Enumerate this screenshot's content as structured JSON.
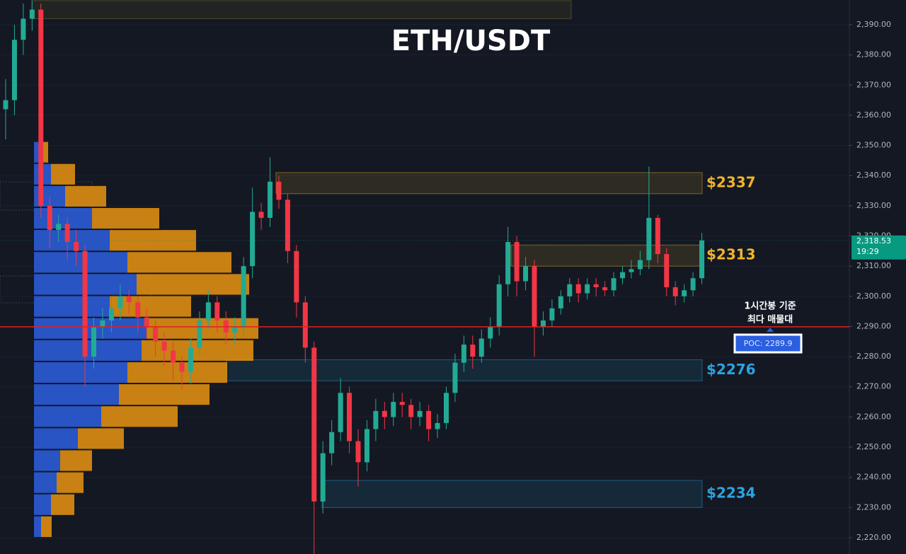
{
  "chart_data": {
    "type": "candlestick",
    "title": "ETH/USDT",
    "ylim": [
      2214.6,
      2398.2
    ],
    "yticks": [
      {
        "value": 2220,
        "label": "2,220.00"
      },
      {
        "value": 2230,
        "label": "2,230.00"
      },
      {
        "value": 2240,
        "label": "2,240.00"
      },
      {
        "value": 2250,
        "label": "2,250.00"
      },
      {
        "value": 2260,
        "label": "2,260.00"
      },
      {
        "value": 2270,
        "label": "2,270.00"
      },
      {
        "value": 2280,
        "label": "2,280.00"
      },
      {
        "value": 2290,
        "label": "2,290.00"
      },
      {
        "value": 2300,
        "label": "2,300.00"
      },
      {
        "value": 2310,
        "label": "2,310.00"
      },
      {
        "value": 2320,
        "label": "2,320.00"
      },
      {
        "value": 2330,
        "label": "2,330.00"
      },
      {
        "value": 2340,
        "label": "2,340.00"
      },
      {
        "value": 2350,
        "label": "2,350.00"
      },
      {
        "value": 2360,
        "label": "2,360.00"
      },
      {
        "value": 2370,
        "label": "2,370.00"
      },
      {
        "value": 2380,
        "label": "2,380.00"
      },
      {
        "value": 2390,
        "label": "2,390.00"
      }
    ],
    "grid": true,
    "up_color": "#22ab94",
    "down_color": "#f23645",
    "open": [
      2362,
      2365,
      2385,
      2392,
      2395,
      2330,
      2322,
      2324,
      2318,
      2315,
      2280,
      2290,
      2292,
      2296,
      2300,
      2298,
      2293,
      2290,
      2285,
      2282,
      2278,
      2275,
      2283,
      2292,
      2298,
      2292,
      2288,
      2290,
      2310,
      2328,
      2326,
      2338,
      2332,
      2315,
      2298,
      2283,
      2232,
      2248,
      2255,
      2268,
      2252,
      2245,
      2256,
      2262,
      2260,
      2265,
      2264,
      2260,
      2262,
      2256,
      2258,
      2268,
      2278,
      2284,
      2280,
      2286,
      2290,
      2304,
      2318,
      2305,
      2310,
      2290,
      2292,
      2296,
      2300,
      2304,
      2301,
      2304,
      2303,
      2302,
      2306,
      2308,
      2309,
      2312,
      2326,
      2314,
      2303,
      2300,
      2302,
      2306
    ],
    "high": [
      2372,
      2390,
      2397,
      2398,
      2397,
      2333,
      2327,
      2326,
      2322,
      2317,
      2293,
      2296,
      2300,
      2304,
      2302,
      2300,
      2296,
      2292,
      2288,
      2285,
      2280,
      2286,
      2295,
      2302,
      2300,
      2295,
      2293,
      2313,
      2336,
      2331,
      2346,
      2340,
      2334,
      2317,
      2300,
      2285,
      2252,
      2259,
      2273,
      2270,
      2256,
      2259,
      2266,
      2265,
      2268,
      2268,
      2266,
      2265,
      2264,
      2261,
      2270,
      2281,
      2287,
      2287,
      2289,
      2293,
      2307,
      2323,
      2320,
      2313,
      2312,
      2295,
      2299,
      2302,
      2306,
      2306,
      2306,
      2306,
      2305,
      2308,
      2310,
      2312,
      2315,
      2343,
      2327,
      2316,
      2305,
      2304,
      2308,
      2321
    ],
    "low": [
      2352,
      2360,
      2380,
      2388,
      2326,
      2316,
      2318,
      2312,
      2310,
      2270,
      2276,
      2286,
      2288,
      2292,
      2294,
      2288,
      2286,
      2280,
      2277,
      2272,
      2269,
      2271,
      2280,
      2289,
      2288,
      2284,
      2284,
      2287,
      2306,
      2322,
      2323,
      2329,
      2311,
      2293,
      2278,
      2214,
      2228,
      2244,
      2252,
      2248,
      2237,
      2242,
      2252,
      2256,
      2257,
      2260,
      2256,
      2257,
      2252,
      2253,
      2256,
      2265,
      2275,
      2276,
      2278,
      2283,
      2287,
      2300,
      2300,
      2302,
      2280,
      2287,
      2290,
      2294,
      2298,
      2298,
      2299,
      2300,
      2300,
      2300,
      2304,
      2306,
      2307,
      2309,
      2311,
      2300,
      2297,
      2298,
      2300,
      2304
    ],
    "close": [
      2365,
      2385,
      2392,
      2395,
      2330,
      2322,
      2324,
      2318,
      2315,
      2280,
      2290,
      2292,
      2296,
      2300,
      2298,
      2293,
      2290,
      2285,
      2282,
      2278,
      2275,
      2283,
      2292,
      2298,
      2292,
      2288,
      2290,
      2310,
      2328,
      2326,
      2338,
      2332,
      2315,
      2298,
      2283,
      2232,
      2248,
      2255,
      2268,
      2252,
      2245,
      2256,
      2262,
      2260,
      2265,
      2264,
      2260,
      2262,
      2256,
      2258,
      2268,
      2278,
      2284,
      2280,
      2286,
      2290,
      2304,
      2318,
      2305,
      2310,
      2290,
      2292,
      2296,
      2300,
      2304,
      2301,
      2304,
      2303,
      2302,
      2306,
      2308,
      2309,
      2312,
      2326,
      2314,
      2303,
      2300,
      2302,
      2306,
      2318.53
    ],
    "volume_profile": {
      "bins": [
        2220.0,
        2227.3,
        2234.6,
        2241.9,
        2249.2,
        2256.5,
        2263.8,
        2271.1,
        2278.4,
        2285.7,
        2293.0,
        2300.3,
        2307.6,
        2314.9,
        2322.2,
        2329.5,
        2336.8,
        2344.1,
        2351.4
      ],
      "buy": [
        10,
        24,
        32,
        37,
        62,
        95,
        120,
        132,
        152,
        159,
        107,
        145,
        132,
        107,
        82,
        44,
        24,
        10
      ],
      "sell": [
        15,
        33,
        38,
        45,
        65,
        108,
        128,
        141,
        158,
        158,
        115,
        159,
        147,
        122,
        95,
        58,
        34,
        10
      ],
      "buy_color": "#2b5fe0",
      "sell_color": "#e8940f"
    },
    "zones": [
      {
        "low": 2392,
        "high": 2398,
        "color": "#8a7a30"
      },
      {
        "low": 2334,
        "high": 2341,
        "label": "$2337",
        "color": "#f0b429"
      },
      {
        "low": 2310,
        "high": 2317,
        "label": "$2313",
        "color": "#f0b429"
      },
      {
        "low": 2272,
        "high": 2279,
        "label": "$2276",
        "color": "#2aa3e0"
      },
      {
        "low": 2230,
        "high": 2239,
        "label": "$2234",
        "color": "#2aa3e0"
      }
    ],
    "poc": {
      "value": 2289.9,
      "label": "POC: 2289.9",
      "color": "#e02020"
    },
    "annotation": [
      "1시간봉 기준",
      "최다 매물대"
    ],
    "last_price": {
      "value": 2318.53,
      "label": "2,318.53",
      "color": "#089981"
    },
    "countdown": "19:29"
  }
}
